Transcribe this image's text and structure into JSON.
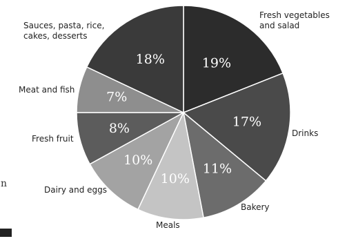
{
  "chart_data": {
    "type": "pie",
    "categories": [
      "Fresh vegetables and salad",
      "Drinks",
      "Bakery",
      "Meals",
      "Dairy and eggs",
      "Fresh fruit",
      "Meat and fish",
      "Sauces, pasta, rice, cakes, desserts"
    ],
    "category_lines": [
      [
        "Fresh vegetables",
        "and salad"
      ],
      [
        "Drinks"
      ],
      [
        "Bakery"
      ],
      [
        "Meals"
      ],
      [
        "Dairy and eggs"
      ],
      [
        "Fresh fruit"
      ],
      [
        "Meat and fish"
      ],
      [
        "Sauces, pasta, rice,",
        "cakes, desserts"
      ]
    ],
    "values": [
      19,
      17,
      11,
      10,
      10,
      8,
      7,
      18
    ],
    "value_labels": [
      "19%",
      "17%",
      "11%",
      "10%",
      "10%",
      "8%",
      "7%",
      "18%"
    ],
    "colors": [
      "#2c2c2c",
      "#4a4a4a",
      "#6c6c6c",
      "#c4c4c4",
      "#a3a3a3",
      "#5c5c5c",
      "#8e8e8e",
      "#3a3a3a"
    ],
    "pct_label_colors": [
      "#ffffff",
      "#ffffff",
      "#ffffff",
      "#ffffff",
      "#ffffff",
      "#ffffff",
      "#ffffff",
      "#ffffff"
    ],
    "start_angle_deg": 0,
    "direction": "clockwise",
    "slice_separator_color": "#ffffff",
    "cropped_left_edge_text": "n"
  }
}
